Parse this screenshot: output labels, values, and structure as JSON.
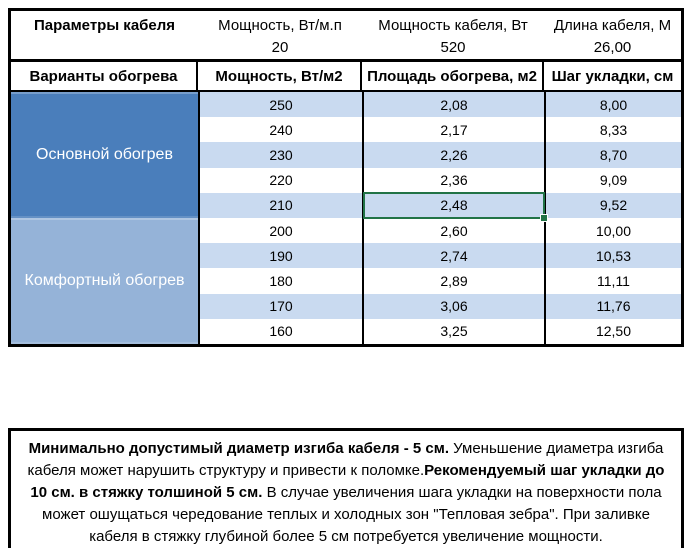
{
  "colors": {
    "section_main_blue": "#4a7ebb",
    "section_comfort_blue": "#95b3d8",
    "band_light_blue": "#c9daf0",
    "selection_green": "#217346",
    "border_black": "#000000"
  },
  "params_header": {
    "title": "Параметры кабеля",
    "items": [
      {
        "label": "Мощность, Вт/м.п",
        "value": "20"
      },
      {
        "label": "Мощность кабеля, Вт",
        "value": "520"
      },
      {
        "label": "Длина кабеля, М",
        "value": "26,00"
      }
    ]
  },
  "columns_header": [
    "Варианты обогрева",
    "Мощность, Вт/м2",
    "Площадь обогрева, м2",
    "Шаг укладки, см"
  ],
  "sections": [
    {
      "label": "Основной обогрев",
      "rows": [
        {
          "power": "250",
          "area": "2,08",
          "step": "8,00"
        },
        {
          "power": "240",
          "area": "2,17",
          "step": "8,33"
        },
        {
          "power": "230",
          "area": "2,26",
          "step": "8,70"
        },
        {
          "power": "220",
          "area": "2,36",
          "step": "9,09"
        },
        {
          "power": "210",
          "area": "2,48",
          "step": "9,52"
        }
      ]
    },
    {
      "label": "Комфортный обогрев",
      "rows": [
        {
          "power": "200",
          "area": "2,60",
          "step": "10,00"
        },
        {
          "power": "190",
          "area": "2,74",
          "step": "10,53"
        },
        {
          "power": "180",
          "area": "2,89",
          "step": "11,11"
        },
        {
          "power": "170",
          "area": "3,06",
          "step": "11,76"
        },
        {
          "power": "160",
          "area": "3,25",
          "step": "12,50"
        }
      ]
    }
  ],
  "selection": {
    "section_index": 0,
    "row_index": 4,
    "column": "area",
    "value": "2,48"
  },
  "note": {
    "segments": [
      {
        "text": "Минимально допустимый диаметр изгиба кабеля - 5 см. ",
        "bold": true
      },
      {
        "text": " Уменьшение диаметра изгиба кабеля может нарушить структуру и привести к поломке.",
        "bold": false
      },
      {
        "text": "Рекомендуемый шаг укладки до 10 см. в стяжку толшиной 5 см.",
        "bold": true
      },
      {
        "text": " В  случае увеличения шага укладки на поверхности пола может ошущаться чередование теплых и холодных зон \"Тепловая зебра\". При заливке кабеля в стяжку глубиной более 5 см потребуется увеличение мощности.",
        "bold": false
      }
    ]
  }
}
